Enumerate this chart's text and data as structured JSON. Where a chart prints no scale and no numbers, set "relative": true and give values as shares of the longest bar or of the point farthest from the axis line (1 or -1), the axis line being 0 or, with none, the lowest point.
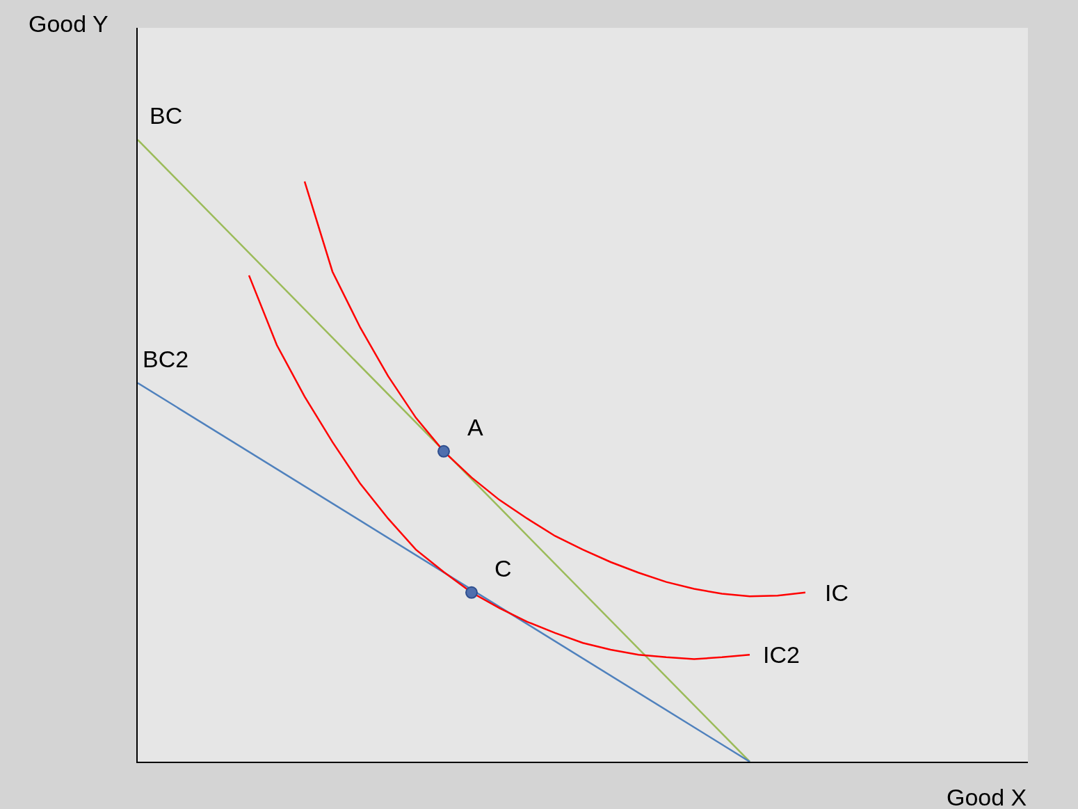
{
  "chart_data": {
    "type": "line",
    "relative": true,
    "xlabel": "Good X",
    "ylabel": "Good Y",
    "categories": [
      null,
      null,
      null,
      null,
      null,
      null,
      null,
      null,
      null,
      null,
      null,
      null,
      null,
      null,
      null,
      null,
      null,
      null,
      null,
      null,
      null,
      null,
      null,
      null,
      null,
      null,
      null,
      null,
      null,
      null,
      null,
      null,
      null
    ],
    "grid": false,
    "legend": false,
    "series": [
      {
        "name": "BC",
        "color": "#9bbb59",
        "values": [
          1,
          null,
          null,
          null,
          null,
          null,
          null,
          null,
          null,
          null,
          null,
          null,
          null,
          null,
          null,
          null,
          null,
          null,
          null,
          null,
          null,
          null,
          0,
          null,
          null,
          null,
          null,
          null,
          null,
          null,
          null,
          null,
          null
        ]
      },
      {
        "name": "BC2",
        "color": "#4f81bd",
        "values": [
          0.609,
          null,
          null,
          null,
          null,
          null,
          null,
          null,
          null,
          null,
          null,
          null,
          null,
          null,
          null,
          null,
          null,
          null,
          null,
          null,
          null,
          null,
          0,
          null,
          null,
          null,
          null,
          null,
          null,
          null,
          null,
          null,
          null
        ]
      },
      {
        "name": "IC",
        "color": "#ff0000",
        "values": [
          null,
          null,
          null,
          null,
          null,
          null,
          0.933,
          0.788,
          0.698,
          0.62,
          0.553,
          0.499,
          0.457,
          0.421,
          0.391,
          0.363,
          0.341,
          0.321,
          0.304,
          0.289,
          0.278,
          0.27,
          0.266,
          0.267,
          0.272,
          null,
          null,
          null,
          null,
          null,
          null,
          null,
          null
        ]
      },
      {
        "name": "IC2",
        "color": "#ff0000",
        "values": [
          null,
          null,
          null,
          null,
          0.782,
          0.67,
          0.587,
          0.514,
          0.447,
          0.391,
          0.341,
          0.305,
          0.272,
          0.247,
          0.225,
          0.207,
          0.191,
          0.18,
          0.172,
          0.168,
          0.165,
          0.168,
          0.172,
          null,
          null,
          null,
          null,
          null,
          null,
          null,
          null,
          null,
          null
        ]
      },
      {
        "name": "A",
        "marker": "circle",
        "color": "#4f6fae",
        "values": [
          null,
          null,
          null,
          null,
          null,
          null,
          null,
          null,
          null,
          null,
          null,
          0.499,
          null,
          null,
          null,
          null,
          null,
          null,
          null,
          null,
          null,
          null,
          null,
          null,
          null,
          null,
          null,
          null,
          null,
          null,
          null,
          null,
          null
        ]
      },
      {
        "name": "C",
        "marker": "circle",
        "color": "#4f6fae",
        "values": [
          null,
          null,
          null,
          null,
          null,
          null,
          null,
          null,
          null,
          null,
          null,
          null,
          0.272,
          null,
          null,
          null,
          null,
          null,
          null,
          null,
          null,
          null,
          null,
          null,
          null,
          null,
          null,
          null,
          null,
          null,
          null,
          null,
          null
        ]
      }
    ]
  }
}
